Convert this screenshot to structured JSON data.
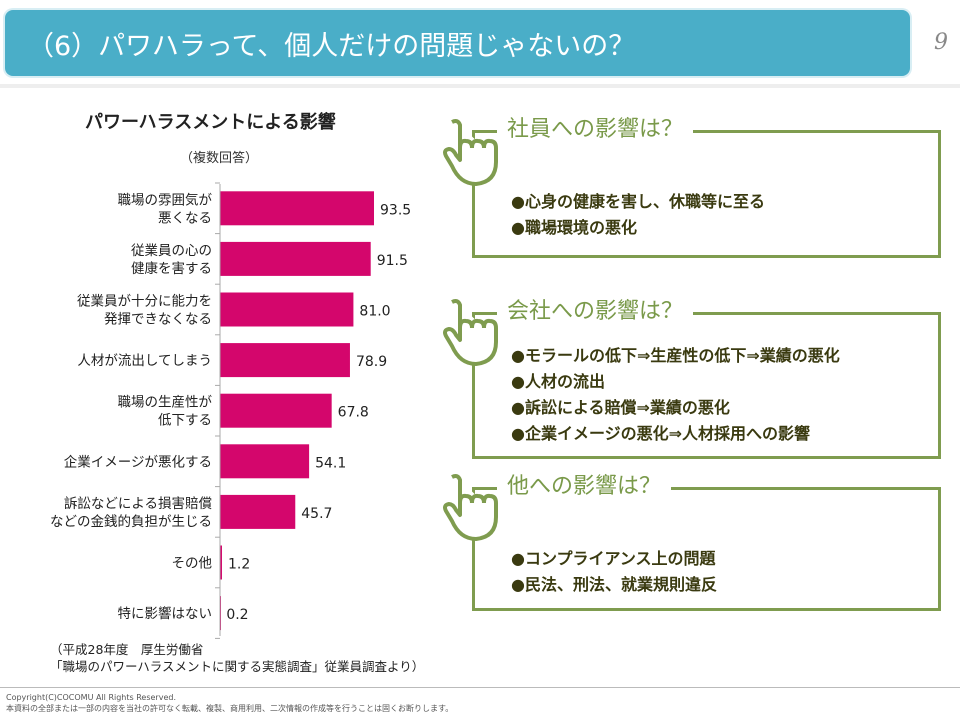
{
  "header": {
    "title": "（6）パワハラって、個人だけの問題じゃないの？",
    "page": "9"
  },
  "chart_data": {
    "type": "bar",
    "orientation": "horizontal",
    "title": "パワーハラスメントによる影響",
    "subtitle": "（複数回答）",
    "categories": [
      "職場の雰囲気が\n悪くなる",
      "従業員の心の\n健康を害する",
      "従業員が十分に能力を\n発揮できなくなる",
      "人材が流出してしまう",
      "職場の生産性が\n低下する",
      "企業イメージが悪化する",
      "訴訟などによる損害賠償\nなどの金銭的負担が生じる",
      "その他",
      "特に影響はない"
    ],
    "values": [
      93.5,
      91.5,
      81.0,
      78.9,
      67.8,
      54.1,
      45.7,
      1.2,
      0.2
    ],
    "value_labels": [
      "93.5",
      "91.5",
      "81.0",
      "78.9",
      "67.8",
      "54.1",
      "45.7",
      "1.2",
      "0.2"
    ],
    "xlim": [
      0,
      100
    ],
    "bar_color": "#d4066c",
    "grid": false
  },
  "source": {
    "line1": "（平成28年度　厚生労働省",
    "line2": "「職場のパワーハラスメントに関する実態調査」従業員調査より）"
  },
  "boxes": [
    {
      "heading": "社員への影響は？",
      "items": [
        "●心身の健康を害し、休職等に至る",
        "●職場環境の悪化"
      ]
    },
    {
      "heading": "会社への影響は？",
      "items": [
        "●モラールの低下⇒生産性の低下⇒業績の悪化",
        "●人材の流出",
        "●訴訟による賠償⇒業績の悪化",
        "●企業イメージの悪化⇒人材採用への影響"
      ]
    },
    {
      "heading": "他への影響は？",
      "items": [
        "●コンプライアンス上の問題",
        "●民法、刑法、就業規則違反"
      ]
    }
  ],
  "footer": {
    "copyright": "Copyright(C)COCOMU All Rights Reserved.",
    "notice": "本資料の全部または一部の内容を当社の許可なく転載、複製、商用利用、二次情報の作成等を行うことは固くお断りします。"
  },
  "colors": {
    "title_bar": "#4aaec8",
    "accent_green": "#7f9c4f",
    "bar": "#d4066c"
  }
}
